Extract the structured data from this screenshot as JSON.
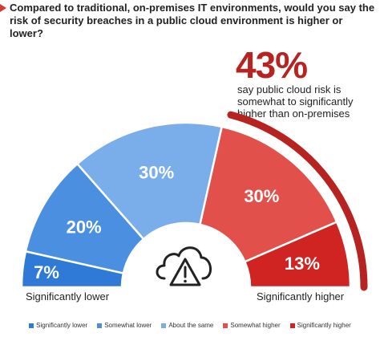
{
  "question": "Compared to traditional, on-premises IT environments, would you say the risk of security breaches in a public cloud environment is higher or lower?",
  "callout": {
    "value": "43%",
    "text": "say public cloud risk is somewhat to significantly higher than on-premises"
  },
  "labels": {
    "left": "Significantly lower",
    "right": "Significantly higher"
  },
  "colors": {
    "accent": "#b72320"
  },
  "icon": "cloud-warning-icon",
  "chart_data": {
    "type": "pie",
    "variant": "semicircle-donut",
    "categories": [
      "Significantly lower",
      "Somewhat lower",
      "About the same",
      "Somewhat higher",
      "Significantly higher"
    ],
    "values": [
      7,
      20,
      30,
      30,
      13
    ],
    "value_labels": [
      "7%",
      "20%",
      "30%",
      "30%",
      "13%"
    ],
    "colors": [
      "#2f7ad6",
      "#4a8fe0",
      "#79aeea",
      "#e2504b",
      "#cf2422"
    ],
    "legend": "bottom"
  }
}
